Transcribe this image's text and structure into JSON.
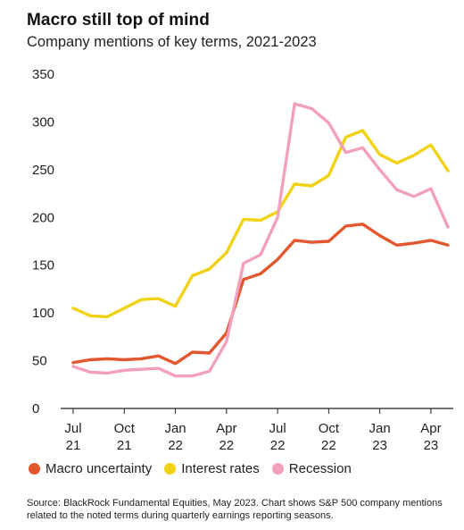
{
  "chart_data": {
    "type": "line",
    "title": "Macro still top of mind",
    "subtitle": "Company mentions of key terms, 2021-2023",
    "ylim": [
      0,
      350
    ],
    "y_ticks": [
      0,
      50,
      100,
      150,
      200,
      250,
      300,
      350
    ],
    "x_tick_labels": [
      {
        "month": "Jul",
        "year": "21"
      },
      {
        "month": "Oct",
        "year": "21"
      },
      {
        "month": "Jan",
        "year": "22"
      },
      {
        "month": "Apr",
        "year": "22"
      },
      {
        "month": "Jul",
        "year": "22"
      },
      {
        "month": "Oct",
        "year": "22"
      },
      {
        "month": "Jan",
        "year": "23"
      },
      {
        "month": "Apr",
        "year": "23"
      }
    ],
    "series": [
      {
        "name": "Macro uncertainty",
        "color": "#e4572e",
        "values": [
          48,
          51,
          52,
          51,
          52,
          55,
          47,
          59,
          58,
          79,
          135,
          141,
          156,
          176,
          174,
          175,
          191,
          193,
          181,
          171,
          173,
          176,
          171
        ]
      },
      {
        "name": "Interest rates",
        "color": "#f2d214",
        "values": [
          105,
          97,
          96,
          105,
          114,
          115,
          107,
          139,
          146,
          163,
          198,
          197,
          206,
          235,
          233,
          244,
          284,
          291,
          266,
          257,
          265,
          276,
          249
        ]
      },
      {
        "name": "Recession",
        "color": "#f2a0bd",
        "values": [
          44,
          38,
          37,
          40,
          41,
          42,
          34,
          34,
          39,
          70,
          152,
          161,
          200,
          319,
          314,
          299,
          268,
          273,
          250,
          229,
          222,
          230,
          190
        ]
      }
    ],
    "grid": false,
    "legend_position": "bottom"
  },
  "source_text": "Source: BlackRock Fundamental Equities, May 2023. Chart shows S&P 500 company mentions related to the noted terms during quarterly earnings reporting seasons."
}
